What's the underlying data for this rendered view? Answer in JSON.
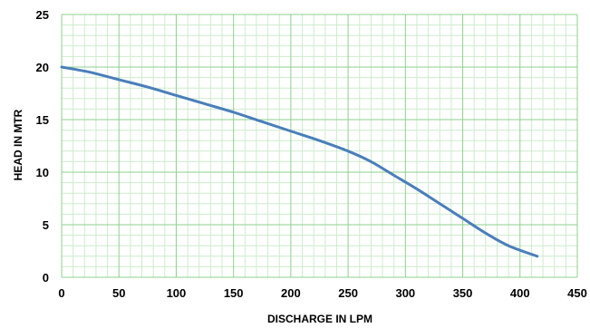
{
  "chart_data": {
    "type": "line",
    "title": "",
    "xlabel": "DISCHARGE IN  LPM",
    "ylabel": "HEAD IN MTR",
    "xlim": [
      0,
      450
    ],
    "ylim": [
      0,
      25
    ],
    "x_ticks": [
      "0",
      "50",
      "100",
      "150",
      "200",
      "250",
      "300",
      "350",
      "400",
      "450"
    ],
    "y_ticks": [
      "0",
      "5",
      "10",
      "15",
      "20",
      "25"
    ],
    "grid": true,
    "grid_major_color": "#8ed08e",
    "grid_minor_color": "#cdeccd",
    "line_color": "#4a7ebb",
    "series": [
      {
        "x": [
          0,
          25,
          50,
          75,
          100,
          125,
          150,
          175,
          200,
          225,
          250,
          270,
          290,
          310,
          330,
          350,
          370,
          390,
          415
        ],
        "y": [
          20,
          19.5,
          18.8,
          18.1,
          17.3,
          16.5,
          15.7,
          14.8,
          13.9,
          13.0,
          12.0,
          11.0,
          9.7,
          8.4,
          7.0,
          5.6,
          4.2,
          3.0,
          2.0
        ]
      }
    ]
  }
}
